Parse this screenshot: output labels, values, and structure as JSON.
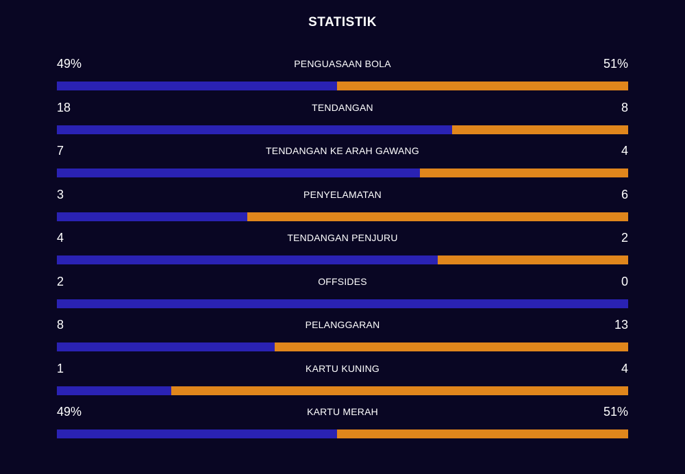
{
  "header": {
    "title": "STATISTIK"
  },
  "colors": {
    "background": "#090623",
    "home": "#2a22b3",
    "away": "#e0861c"
  },
  "stats": [
    {
      "label": "PENGUASAAN BOLA",
      "home": "49%",
      "away": "51%",
      "home_share": 0.49
    },
    {
      "label": "TENDANGAN",
      "home": "18",
      "away": "8",
      "home_share": 0.692
    },
    {
      "label": "TENDANGAN KE ARAH GAWANG",
      "home": "7",
      "away": "4",
      "home_share": 0.636
    },
    {
      "label": "PENYELAMATAN",
      "home": "3",
      "away": "6",
      "home_share": 0.333
    },
    {
      "label": "TENDANGAN PENJURU",
      "home": "4",
      "away": "2",
      "home_share": 0.667
    },
    {
      "label": "OFFSIDES",
      "home": "2",
      "away": "0",
      "home_share": 1.0
    },
    {
      "label": "PELANGGARAN",
      "home": "8",
      "away": "13",
      "home_share": 0.381
    },
    {
      "label": "KARTU KUNING",
      "home": "1",
      "away": "4",
      "home_share": 0.2
    },
    {
      "label": "KARTU MERAH",
      "home": "49%",
      "away": "51%",
      "home_share": 0.49
    }
  ]
}
